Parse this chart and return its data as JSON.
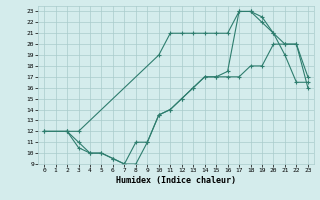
{
  "xlabel": "Humidex (Indice chaleur)",
  "xlim": [
    -0.5,
    23.5
  ],
  "ylim": [
    9,
    23.5
  ],
  "xticks": [
    0,
    1,
    2,
    3,
    4,
    5,
    6,
    7,
    8,
    9,
    10,
    11,
    12,
    13,
    14,
    15,
    16,
    17,
    18,
    19,
    20,
    21,
    22,
    23
  ],
  "yticks": [
    9,
    10,
    11,
    12,
    13,
    14,
    15,
    16,
    17,
    18,
    19,
    20,
    21,
    22,
    23
  ],
  "bg_color": "#d4ecec",
  "grid_color": "#aacccc",
  "line_color": "#2e7d6e",
  "line1_x": [
    0,
    2,
    3,
    10,
    11,
    12,
    13,
    14,
    15,
    16,
    17,
    18,
    19,
    20,
    21,
    22,
    23
  ],
  "line1_y": [
    12,
    12,
    12,
    19,
    21,
    21,
    21,
    21,
    21,
    21,
    23,
    23,
    22.5,
    21,
    20,
    20,
    17
  ],
  "line2_x": [
    0,
    2,
    3,
    4,
    5,
    6,
    7,
    8,
    9,
    10,
    11,
    12,
    13,
    14,
    15,
    16,
    17,
    18,
    19,
    20,
    21,
    22,
    23
  ],
  "line2_y": [
    12,
    12,
    11,
    10,
    10,
    9.5,
    9,
    9,
    11,
    13.5,
    14,
    15,
    16,
    17,
    17,
    17.5,
    23,
    23,
    22,
    21,
    19,
    16.5,
    16.5
  ],
  "line3_x": [
    2,
    3,
    4,
    5,
    6,
    7,
    8,
    9,
    10,
    11,
    12,
    13,
    14,
    15,
    16,
    17,
    18,
    19,
    20,
    21,
    22,
    23
  ],
  "line3_y": [
    12,
    10.5,
    10,
    10,
    9.5,
    9,
    11,
    11,
    13.5,
    14,
    15,
    16,
    17,
    17,
    17,
    17,
    18,
    18,
    20,
    20,
    20,
    16
  ]
}
